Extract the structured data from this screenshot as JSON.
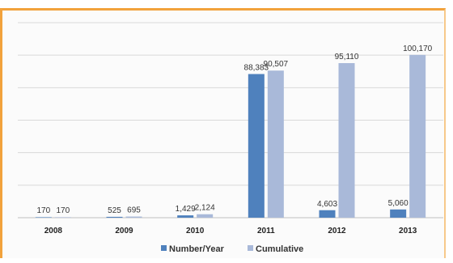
{
  "chart_data": {
    "type": "bar",
    "categories": [
      "2008",
      "2009",
      "2010",
      "2011",
      "2012",
      "2013"
    ],
    "series": [
      {
        "name": "Number/Year",
        "values": [
          170,
          525,
          1429,
          88383,
          4603,
          5060
        ],
        "labels": [
          "170",
          "525",
          "1,429",
          "88,383",
          "4,603",
          "5,060"
        ],
        "color": "#4f81bd"
      },
      {
        "name": "Cumulative",
        "values": [
          170,
          695,
          2124,
          90507,
          95110,
          100170
        ],
        "labels": [
          "170",
          "695",
          "2,124",
          "90,507",
          "95,110",
          "100,170"
        ],
        "color": "#a9b9d9"
      }
    ],
    "ylim": [
      0,
      120000
    ],
    "grid": true,
    "legend": "bottom"
  }
}
